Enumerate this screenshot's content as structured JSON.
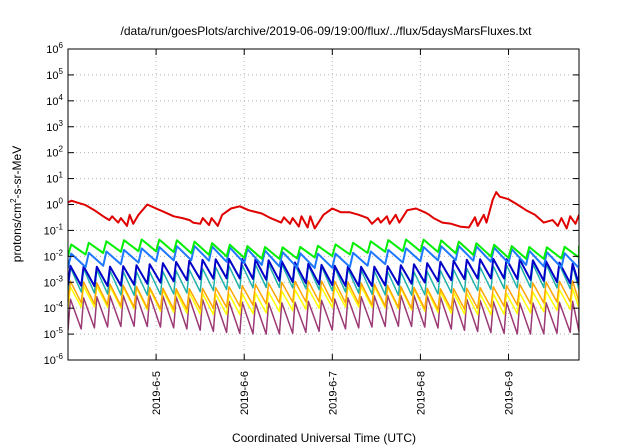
{
  "chart_data": {
    "type": "line",
    "title": "/data/run/goesPlots/archive/2019-06-09/19:00/flux/../flux/5daysMarsFluxes.txt",
    "xlabel": "Coordinated Universal Time (UTC)",
    "ylabel": {
      "pre": "protons/cm",
      "sup": "2",
      "post": "-s-sr-MeV"
    },
    "yscale": "log",
    "ylim_exp": [
      -6,
      6
    ],
    "xlim": [
      0,
      5.8
    ],
    "x_unit": "days since 2019-06-04 00:00 UTC",
    "grid": true,
    "x_ticks": [
      {
        "x": 1,
        "label": "2019-6-5"
      },
      {
        "x": 2,
        "label": "2019-6-6"
      },
      {
        "x": 3,
        "label": "2019-6-7"
      },
      {
        "x": 4,
        "label": "2019-6-8"
      },
      {
        "x": 5,
        "label": "2019-6-9"
      }
    ],
    "y_ticks": [
      {
        "exp": 6,
        "base": "10",
        "sup": "6"
      },
      {
        "exp": 5,
        "base": "10",
        "sup": "5"
      },
      {
        "exp": 4,
        "base": "10",
        "sup": "4"
      },
      {
        "exp": 3,
        "base": "10",
        "sup": "3"
      },
      {
        "exp": 2,
        "base": "10",
        "sup": "2"
      },
      {
        "exp": 1,
        "base": "10",
        "sup": "1"
      },
      {
        "exp": 0,
        "base": "10",
        "sup": "0"
      },
      {
        "exp": -1,
        "base": "10",
        "sup": "-1"
      },
      {
        "exp": -2,
        "base": "10",
        "sup": "-2"
      },
      {
        "exp": -3,
        "base": "10",
        "sup": "-3"
      },
      {
        "exp": -4,
        "base": "10",
        "sup": "-4"
      },
      {
        "exp": -5,
        "base": "10",
        "sup": "-5"
      },
      {
        "exp": -6,
        "base": "10",
        "sup": "-6"
      }
    ],
    "series": [
      {
        "color": "#9b3a74",
        "kind": "saw",
        "base_log": -4.85,
        "amp_log": 1.2,
        "period": 0.15,
        "width": 1.5
      },
      {
        "color": "#ffff00",
        "kind": "saw",
        "base_log": -4.1,
        "amp_log": 0.8,
        "period": 0.15,
        "width": 1.5
      },
      {
        "color": "#ffa500",
        "kind": "saw",
        "base_log": -3.9,
        "amp_log": 0.8,
        "period": 0.15,
        "width": 1.5
      },
      {
        "color": "#20b2aa",
        "kind": "saw",
        "base_log": -3.35,
        "amp_log": 0.9,
        "period": 0.15,
        "width": 1.5
      },
      {
        "color": "#0000c8",
        "kind": "saw",
        "base_log": -3.0,
        "amp_log": 0.75,
        "period": 0.15,
        "width": 2
      },
      {
        "color": "#1e78ff",
        "kind": "saw",
        "base_log": -2.3,
        "amp_log": 0.55,
        "period": 0.2,
        "width": 2
      },
      {
        "color": "#00ee00",
        "kind": "saw",
        "base_log": -1.95,
        "amp_log": 0.45,
        "period": 0.2,
        "width": 2
      },
      {
        "color": "#e00000",
        "kind": "trace",
        "width": 2,
        "x": [
          0.0,
          0.04,
          0.1,
          0.2,
          0.3,
          0.4,
          0.47,
          0.5,
          0.57,
          0.6,
          0.67,
          0.7,
          0.74,
          0.8,
          0.9,
          1.0,
          1.1,
          1.2,
          1.3,
          1.38,
          1.42,
          1.5,
          1.53,
          1.6,
          1.63,
          1.7,
          1.75,
          1.85,
          1.95,
          2.05,
          2.2,
          2.3,
          2.42,
          2.45,
          2.52,
          2.55,
          2.62,
          2.65,
          2.72,
          2.75,
          2.8,
          2.9,
          3.0,
          3.1,
          3.2,
          3.3,
          3.4,
          3.45,
          3.52,
          3.55,
          3.62,
          3.65,
          3.72,
          3.76,
          3.85,
          3.95,
          4.05,
          4.1,
          4.15,
          4.25,
          4.35,
          4.45,
          4.55,
          4.62,
          4.65,
          4.72,
          4.75,
          4.82,
          4.86,
          4.9,
          5.0,
          5.1,
          5.2,
          5.3,
          5.4,
          5.5,
          5.56,
          5.6,
          5.66,
          5.7,
          5.76,
          5.8
        ],
        "y": [
          1.2,
          1.4,
          1.2,
          0.95,
          0.6,
          0.35,
          0.25,
          0.35,
          0.2,
          0.3,
          0.15,
          0.4,
          0.18,
          0.4,
          1.0,
          0.7,
          0.5,
          0.35,
          0.3,
          0.25,
          0.2,
          0.18,
          0.3,
          0.16,
          0.3,
          0.15,
          0.4,
          0.7,
          0.85,
          0.6,
          0.45,
          0.3,
          0.2,
          0.32,
          0.18,
          0.3,
          0.14,
          0.35,
          0.13,
          0.35,
          0.12,
          0.4,
          0.7,
          0.5,
          0.5,
          0.4,
          0.3,
          0.18,
          0.3,
          0.2,
          0.35,
          0.18,
          0.4,
          0.2,
          0.6,
          0.7,
          0.5,
          0.4,
          0.3,
          0.2,
          0.18,
          0.14,
          0.13,
          0.32,
          0.15,
          0.4,
          0.2,
          1.5,
          3.0,
          2.0,
          1.6,
          1.0,
          0.6,
          0.4,
          0.2,
          0.25,
          0.15,
          0.3,
          0.12,
          0.35,
          0.18,
          0.4
        ]
      }
    ]
  }
}
